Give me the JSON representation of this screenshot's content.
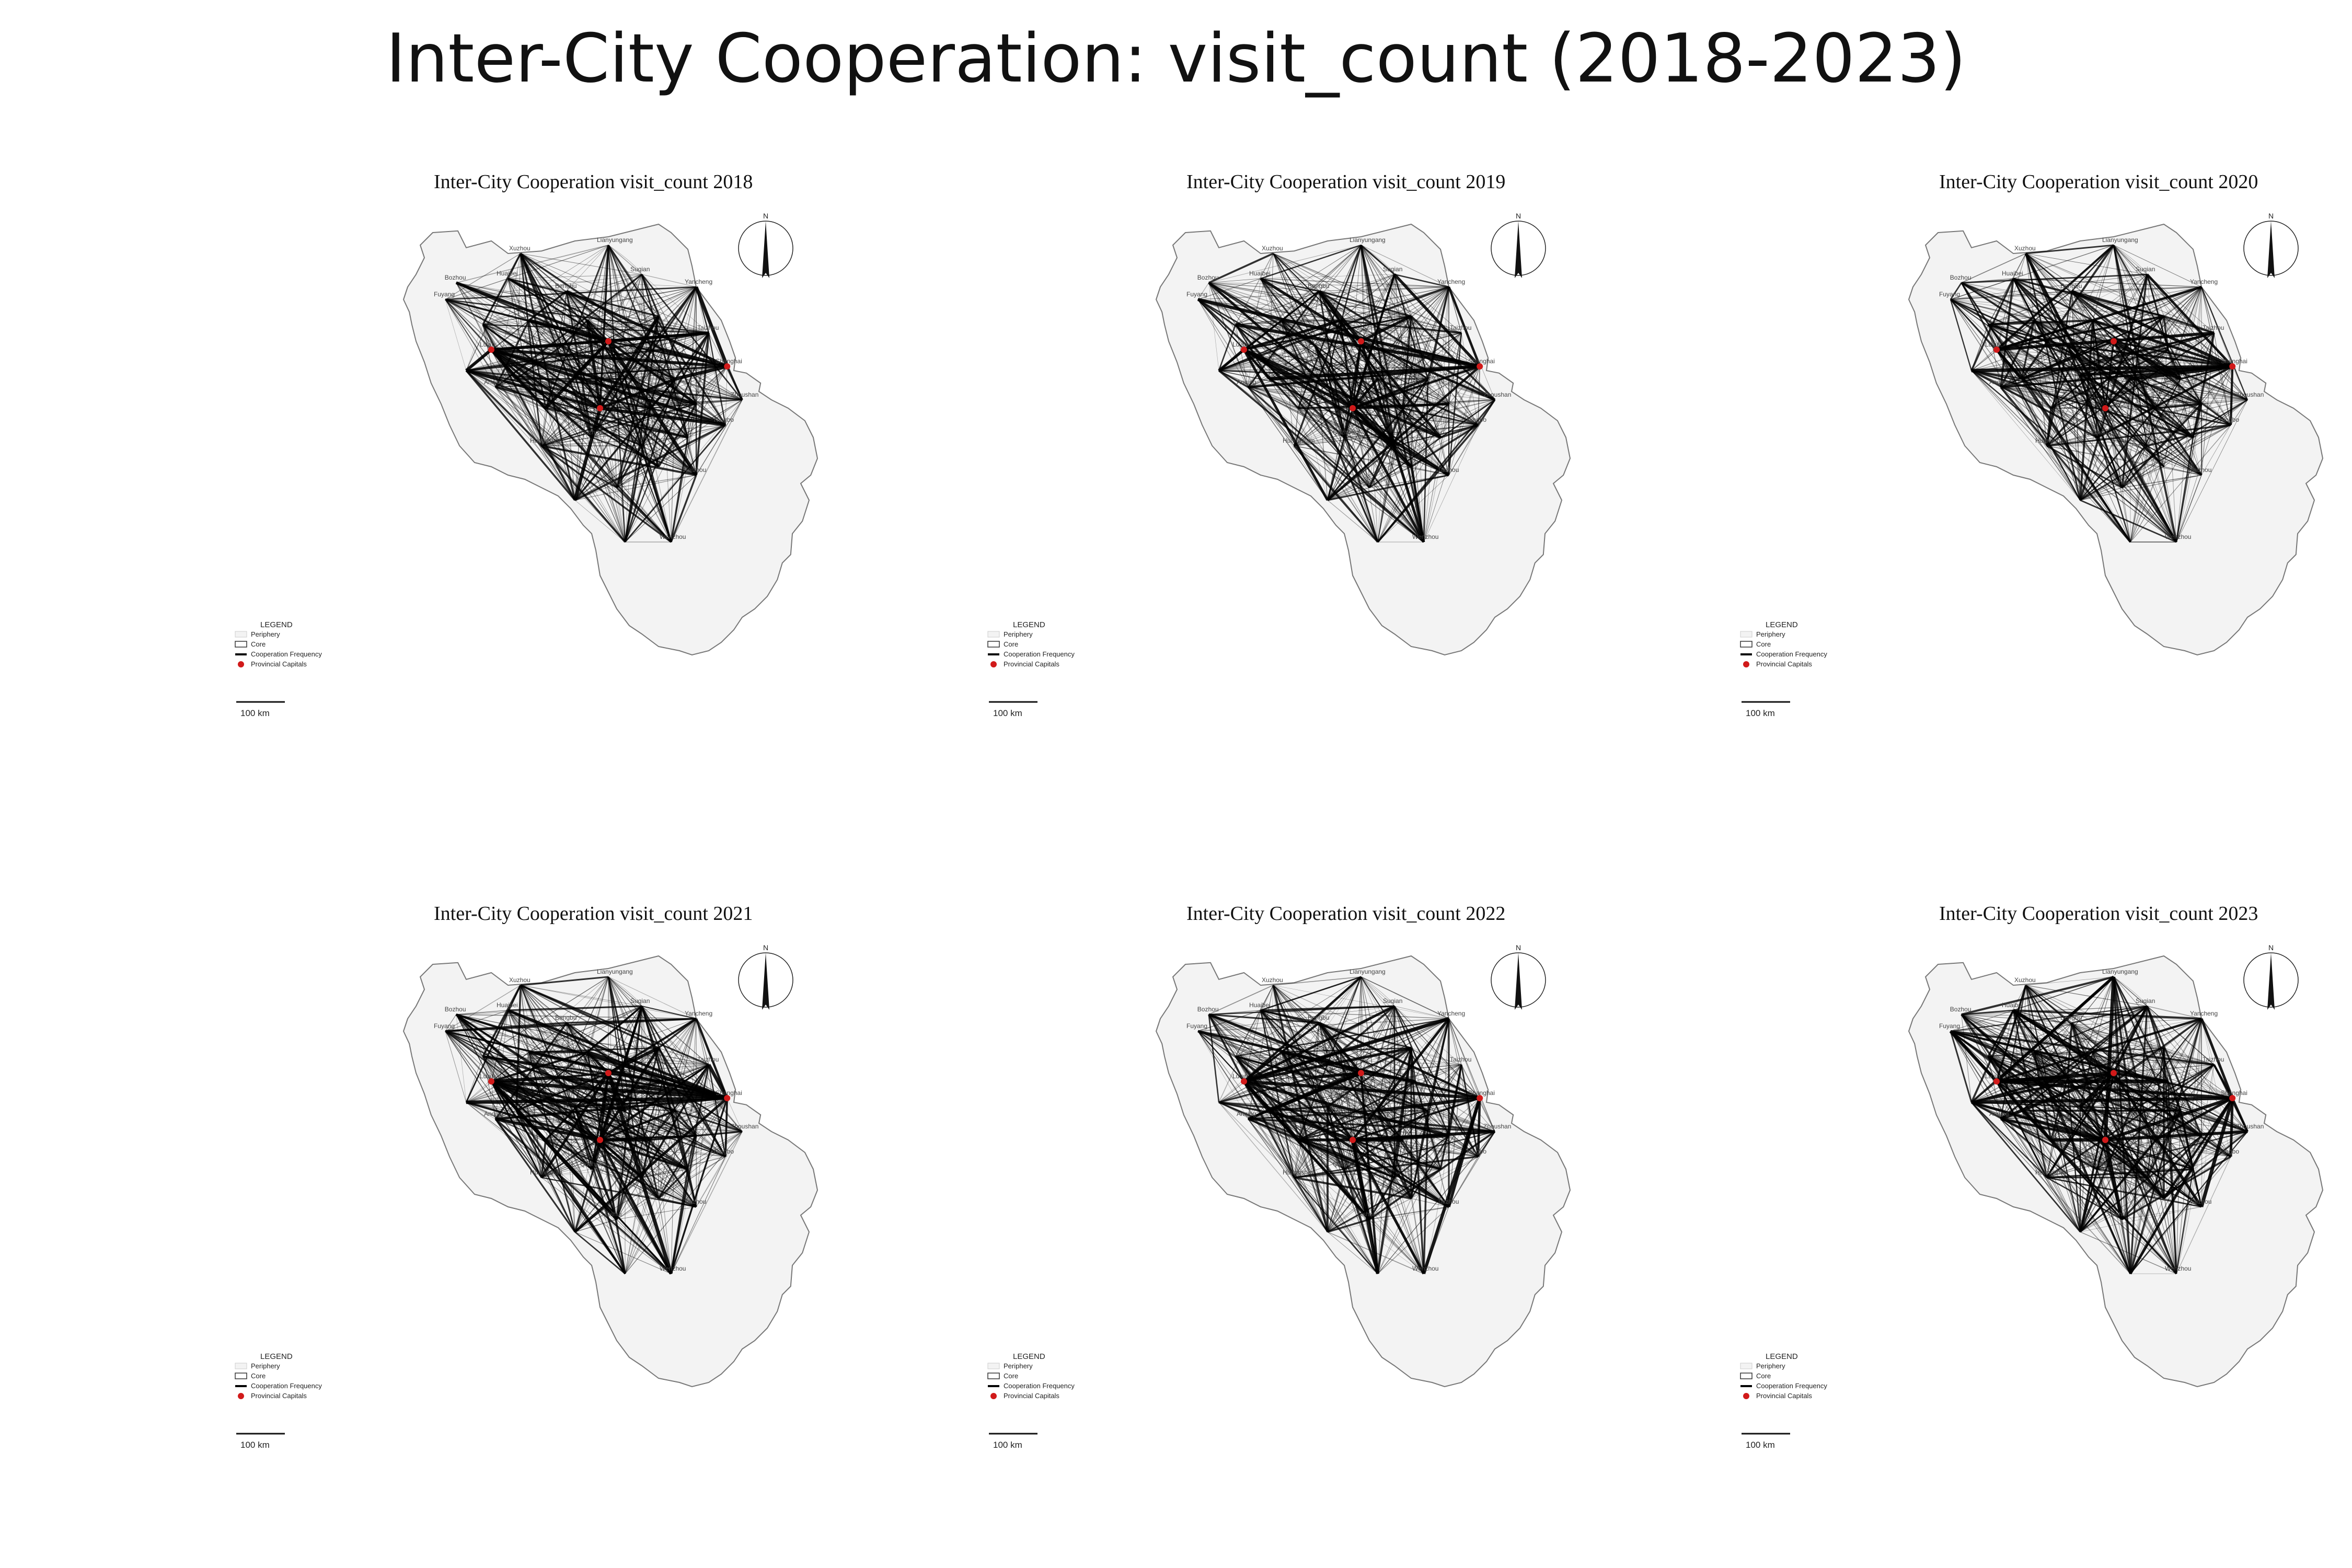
{
  "title": "Inter-City Cooperation: visit_count (2018-2023)",
  "panels": [
    {
      "title": "Inter-City Cooperation visit_count 2018",
      "year": 2018
    },
    {
      "title": "Inter-City Cooperation visit_count 2019",
      "year": 2019
    },
    {
      "title": "Inter-City Cooperation visit_count 2020",
      "year": 2020
    },
    {
      "title": "Inter-City Cooperation visit_count 2021",
      "year": 2021
    },
    {
      "title": "Inter-City Cooperation visit_count 2022",
      "year": 2022
    },
    {
      "title": "Inter-City Cooperation visit_count 2023",
      "year": 2023
    }
  ],
  "legend": {
    "title": "LEGEND",
    "items": [
      "Periphery",
      "Core",
      "Cooperation Frequency",
      "Provincial Capitals"
    ]
  },
  "scale_bar": "100 km",
  "north_arrow": "N",
  "colors": {
    "periphery_fill": "#f3f3f3",
    "boundary": "#777777",
    "edge": "#000000",
    "capital": "#d11a1a"
  },
  "cities": [
    "Lianyungang",
    "Xuzhou",
    "Suqian",
    "Bozhou",
    "Huaibei",
    "Fuyang",
    "Bengbu",
    "Yancheng",
    "Taizhou",
    "Lu'an",
    "Anqing",
    "Huangshan",
    "Quzhou",
    "Lishui",
    "Wenzhou",
    "Taizhou",
    "Shanghai",
    "Zhoushan",
    "Ningbo"
  ]
}
